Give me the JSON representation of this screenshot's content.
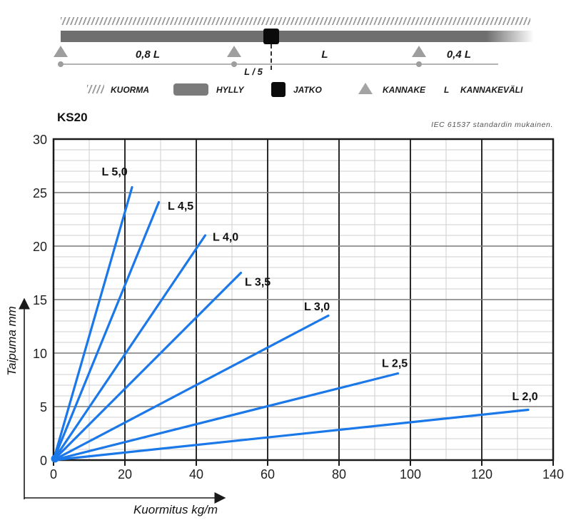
{
  "diagram": {
    "span_left_label": "0,8 L",
    "span_mid_label": "L",
    "span_right_label": "0,4 L",
    "joint_offset_label": "L / 5",
    "legend": [
      {
        "icon": "hatch-icon",
        "label": "KUORMA"
      },
      {
        "icon": "bar-icon",
        "label": "HYLLY"
      },
      {
        "icon": "square-icon",
        "label": "JATKO"
      },
      {
        "icon": "triangle-icon",
        "label": "KANNAKE"
      },
      {
        "icon": "letter-l",
        "label": "KANNAKEVÄLI"
      }
    ],
    "legend_letter": "L"
  },
  "chart": {
    "title": "KS20",
    "note": "IEC 61537 standardin mukainen."
  },
  "chart_data": {
    "type": "line",
    "title": "KS20",
    "xlabel": "Kuormitus kg/m",
    "ylabel": "Taipuma mm",
    "xlim": [
      0,
      140
    ],
    "ylim": [
      0,
      30
    ],
    "x_major_ticks": [
      0,
      20,
      40,
      60,
      80,
      100,
      120,
      140
    ],
    "y_major_ticks": [
      0,
      5,
      10,
      15,
      20,
      25,
      30
    ],
    "x_minor_step": 10,
    "y_minor_step": 1,
    "grid": "on",
    "line_color": "#1b78e8",
    "series": [
      {
        "name": "L 5,0",
        "x": [
          0,
          22
        ],
        "y": [
          0,
          25.5
        ],
        "label_pos": [
          13.5,
          26.6
        ]
      },
      {
        "name": "L 4,5",
        "x": [
          0,
          29.5
        ],
        "y": [
          0,
          24.1
        ],
        "label_pos": [
          32.0,
          23.4
        ]
      },
      {
        "name": "L 4,0",
        "x": [
          0,
          42.5
        ],
        "y": [
          0,
          21.0
        ],
        "label_pos": [
          44.6,
          20.5
        ]
      },
      {
        "name": "L 3,5",
        "x": [
          0,
          52.5
        ],
        "y": [
          0,
          17.5
        ],
        "label_pos": [
          53.6,
          16.3
        ]
      },
      {
        "name": "L 3,0",
        "x": [
          0,
          77
        ],
        "y": [
          0,
          13.5
        ],
        "label_pos": [
          70.2,
          14.0
        ]
      },
      {
        "name": "L 2,5",
        "x": [
          0,
          96.5
        ],
        "y": [
          0,
          8.1
        ],
        "label_pos": [
          92.0,
          8.7
        ]
      },
      {
        "name": "L 2,0",
        "x": [
          0,
          133
        ],
        "y": [
          0,
          4.7
        ],
        "label_pos": [
          128.5,
          5.6
        ]
      }
    ]
  },
  "colors": {
    "line_blue": "#1b78e8",
    "beam_gray": "#6f6f6f",
    "support_gray": "#9e9e9e",
    "joint_black": "#0b0b0b",
    "grid_minor": "#cfcfcf",
    "grid_major_h": "#7a7a7a",
    "grid_major_v": "#2b2b2b",
    "frame": "#1a1a1a"
  }
}
